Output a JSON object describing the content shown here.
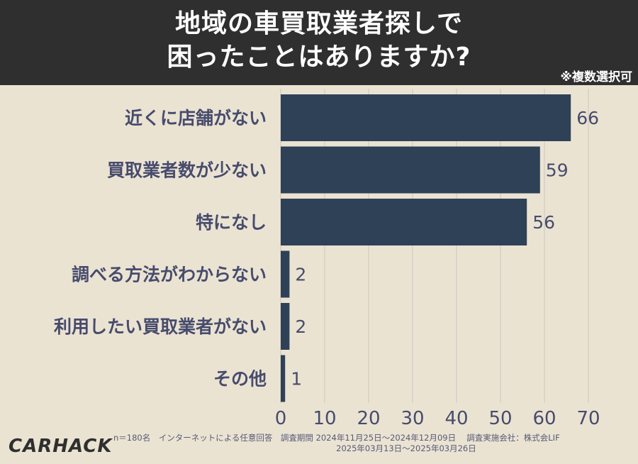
{
  "header": {
    "title": "地域の車買取業者探しで\n困ったことはありますか?",
    "note": "※複数選択可"
  },
  "chart_data": {
    "type": "bar",
    "orientation": "horizontal",
    "categories": [
      "近くに店舗がない",
      "買取業者数が少ない",
      "特になし",
      "調べる方法がわからない",
      "利用したい買取業者がない",
      "その他"
    ],
    "values": [
      66,
      59,
      56,
      2,
      2,
      1
    ],
    "xlim": [
      0,
      70
    ],
    "xticks": [
      0,
      10,
      20,
      30,
      40,
      50,
      60,
      70
    ],
    "grid": true,
    "bar_color": "#2e4157",
    "grid_color": "#d6d0c4",
    "label_color": "#474c6d"
  },
  "footer": {
    "survey_info": "n＝180名　インターネットによる任意回答　調査期間  2024年11月25日～2024年12月09日　 調査実施会社：株式会LIF\n　　　　　　　　　　　　　　　　　　　　　　　　　　　 2025年03月13日～2025年03月26日",
    "logo": "CARHACK"
  }
}
